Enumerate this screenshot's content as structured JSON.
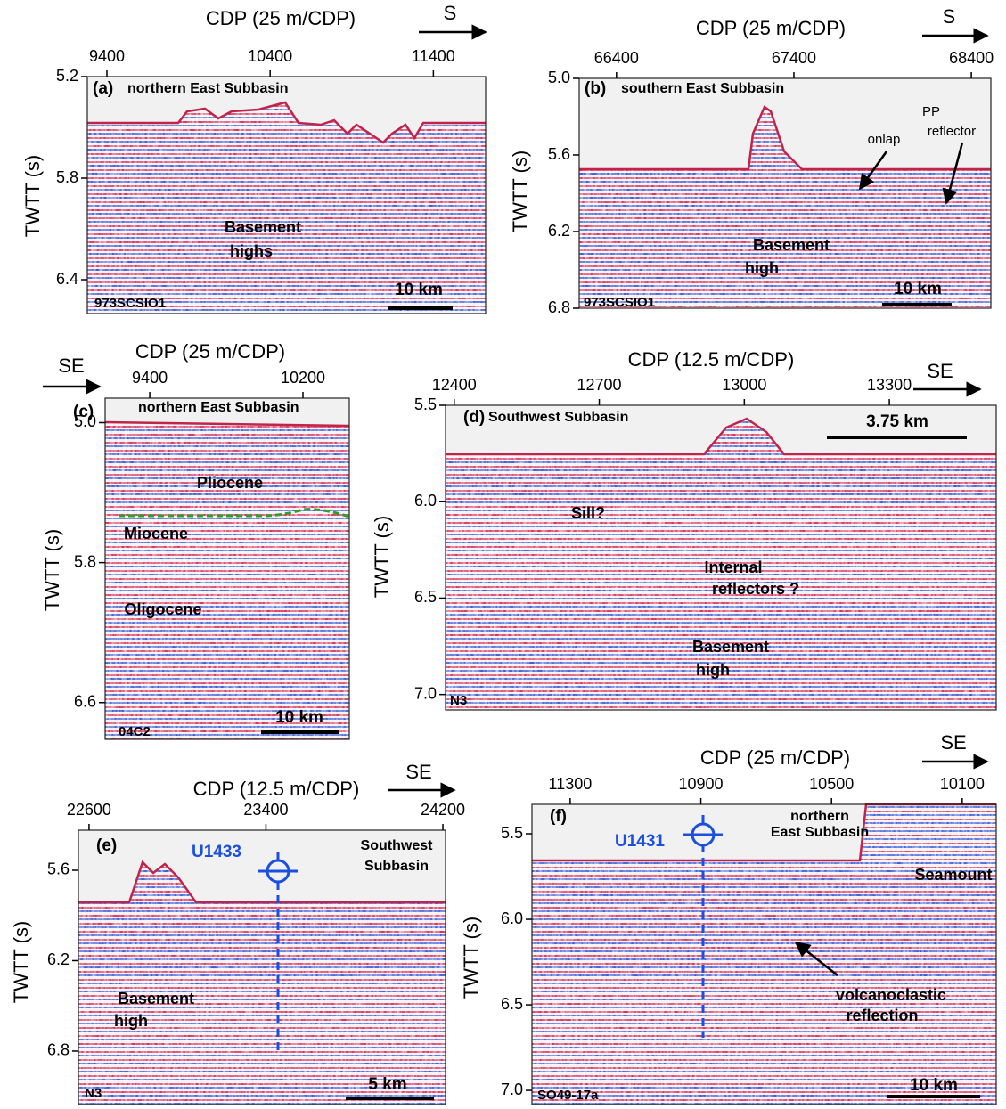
{
  "chart_data": [
    {
      "type": "seismic",
      "panel_label": "(a)",
      "title": [
        "northern East Subbasin"
      ],
      "xlabel": "CDP (25 m/CDP)",
      "ylabel": "TWTT (s)",
      "direction": "S",
      "xlim": [
        9280,
        11720
      ],
      "xticks": [
        9400,
        10400,
        11400
      ],
      "ylim": [
        5.2,
        6.6
      ],
      "yticks": [
        5.2,
        5.8,
        6.4
      ],
      "line_name": "973SCSIO1",
      "scale_bar": "10 km",
      "annotations": [
        "Basement",
        "highs"
      ]
    },
    {
      "type": "seismic",
      "panel_label": "(b)",
      "title": [
        "southern East Subbasin"
      ],
      "xlabel": "CDP (25 m/CDP)",
      "ylabel": "TWTT (s)",
      "direction": "S",
      "xlim": [
        66190,
        68510
      ],
      "xticks": [
        66400,
        67400,
        68400
      ],
      "ylim": [
        5.0,
        6.8
      ],
      "yticks": [
        {
          "value": 5.0,
          "label": "5.0"
        },
        5.6,
        6.2,
        6.8
      ],
      "line_name": "973SCSIO1",
      "scale_bar": "10 km",
      "annotations": [
        "Basement",
        "high",
        "onlap",
        "PP",
        "reflector"
      ]
    },
    {
      "type": "seismic",
      "panel_label": "(c)",
      "title": [
        "northern East Subbasin"
      ],
      "xlabel": "CDP (25 m/CDP)",
      "ylabel": "TWTT (s)",
      "direction": "SE",
      "xlim": [
        9167,
        10442
      ],
      "xticks": [
        9400,
        10200
      ],
      "ylim": [
        4.86,
        6.81
      ],
      "yticks": [
        {
          "value": 5.0,
          "label": "5.0"
        },
        5.8,
        6.6
      ],
      "line_name": "04C2",
      "scale_bar": "10 km",
      "annotations": [
        "Pliocene",
        "Miocene",
        "Oligocene"
      ]
    },
    {
      "type": "seismic",
      "panel_label": "(d)",
      "title": [
        "Southwest Subbasin"
      ],
      "xlabel": "CDP (12.5 m/CDP)",
      "ylabel": "TWTT (s)",
      "direction": "SE",
      "xlim": [
        12382,
        13521
      ],
      "xticks": [
        12400,
        12700,
        13000,
        13300
      ],
      "ylim": [
        5.5,
        7.08
      ],
      "yticks": [
        5.5,
        {
          "value": 6.0,
          "label": "6.0"
        },
        6.5,
        {
          "value": 7.0,
          "label": "7.0"
        }
      ],
      "line_name": "N3",
      "scale_bar": "3.75 km",
      "annotations": [
        "Sill?",
        "Internal",
        "reflectors ?",
        "Basement",
        "high"
      ]
    },
    {
      "type": "seismic",
      "panel_label": "(e)",
      "title": [
        "Southwest",
        "Subbasin"
      ],
      "xlabel": "CDP (12.5 m/CDP)",
      "ylabel": "TWTT (s)",
      "direction": "SE",
      "xlim": [
        22552,
        24212
      ],
      "xticks": [
        22600,
        23400,
        24200
      ],
      "ylim": [
        5.334,
        7.155
      ],
      "yticks": [
        5.6,
        6.2,
        6.8
      ],
      "line_name": "N3",
      "scale_bar": "5 km",
      "annotations": [
        "Basement",
        "high"
      ],
      "well": "U1433"
    },
    {
      "type": "seismic",
      "panel_label": "(f)",
      "title": [
        "northern",
        "East Subbasin"
      ],
      "xlabel": "CDP (25 m/CDP)",
      "ylabel": "TWTT (s)",
      "direction": "SE",
      "xlim": [
        11417,
        9996
      ],
      "xticks": [
        11300,
        10900,
        10500,
        10100
      ],
      "ylim": [
        5.328,
        7.083
      ],
      "yticks": [
        5.5,
        {
          "value": 6.0,
          "label": "6.0"
        },
        6.5,
        {
          "value": 7.0,
          "label": "7.0"
        }
      ],
      "line_name": "SO49-17a",
      "scale_bar": "10 km",
      "annotations": [
        "Seamount",
        "volcanoclastic",
        "reflection"
      ],
      "well": "U1431"
    }
  ]
}
